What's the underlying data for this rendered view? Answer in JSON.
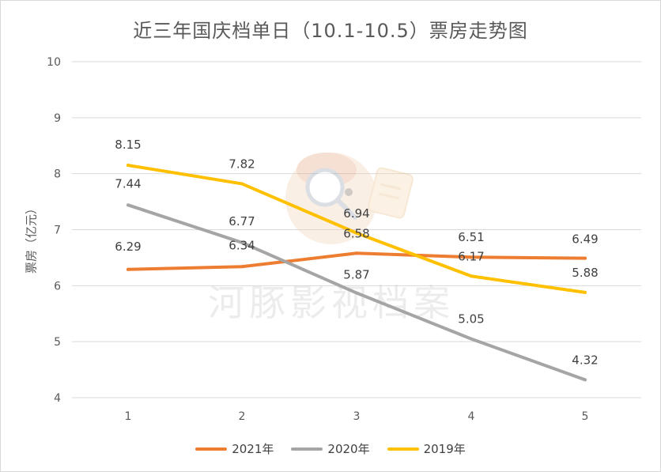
{
  "chart_data": {
    "type": "line",
    "title": "近三年国庆档单日（10.1-10.5）票房走势图",
    "ylabel": "票房（亿元）",
    "xlabel": "",
    "x": [
      1,
      2,
      3,
      4,
      5
    ],
    "ylim": [
      4,
      10
    ],
    "yticks": [
      4,
      5,
      6,
      7,
      8,
      9,
      10
    ],
    "grid": true,
    "legend_position": "bottom",
    "series": [
      {
        "name": "2021年",
        "color": "#ED7D31",
        "values": [
          6.29,
          6.34,
          6.58,
          6.51,
          6.49
        ],
        "labels": [
          "6.29",
          "6.34",
          "6.58",
          "6.51",
          "6.49"
        ]
      },
      {
        "name": "2020年",
        "color": "#A5A5A5",
        "values": [
          7.44,
          6.77,
          5.87,
          5.05,
          4.32
        ],
        "labels": [
          "7.44",
          "6.77",
          "5.87",
          "5.05",
          "4.32"
        ]
      },
      {
        "name": "2019年",
        "color": "#FFC000",
        "values": [
          8.15,
          7.82,
          6.94,
          6.17,
          5.88
        ],
        "labels": [
          "8.15",
          "7.82",
          "6.94",
          "6.17",
          "5.88"
        ]
      }
    ]
  },
  "watermark": {
    "text": "河豚影视档案"
  }
}
